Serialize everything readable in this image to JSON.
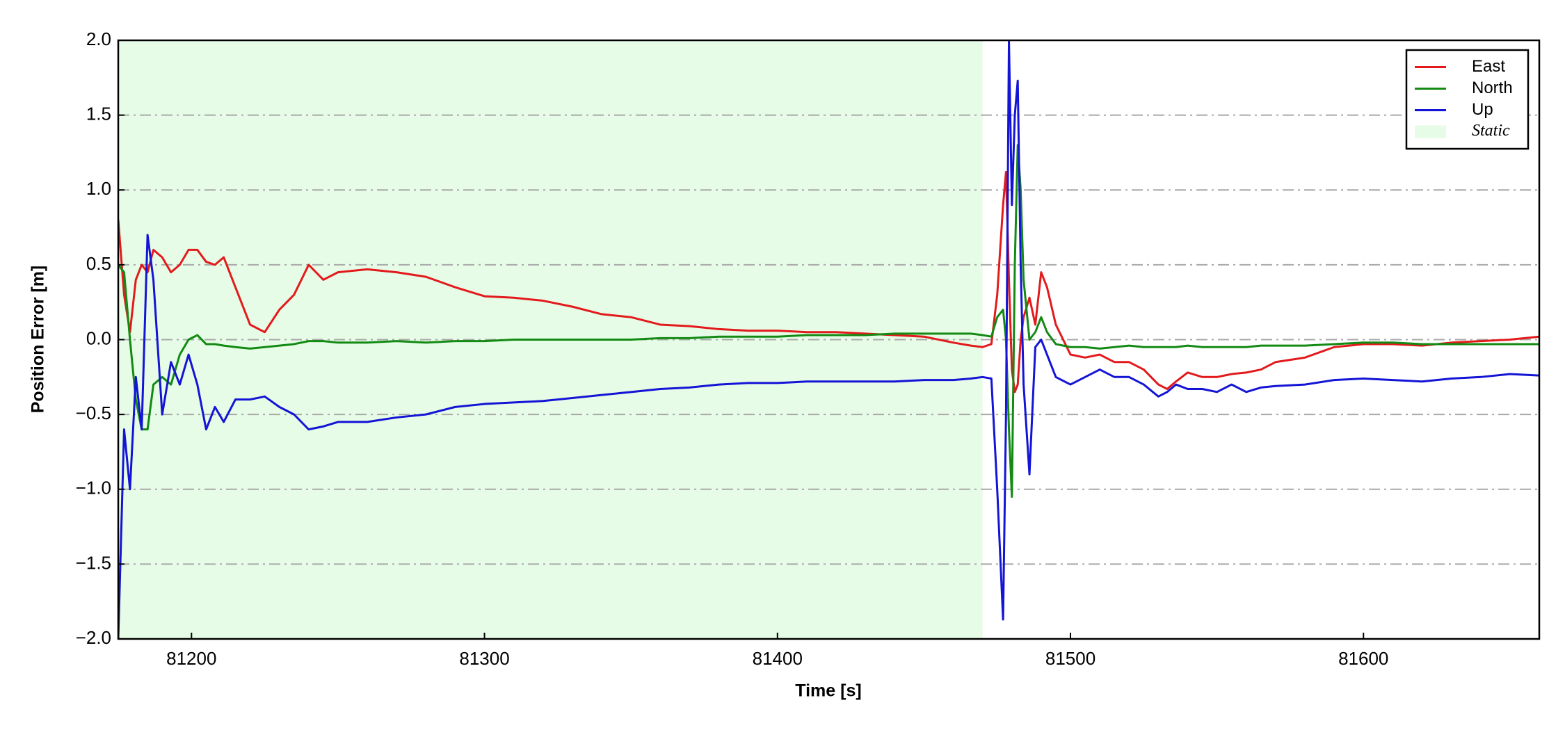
{
  "chart_data": {
    "type": "line",
    "xlabel": "Time [s]",
    "ylabel": "Position Error [m]",
    "xlim": [
      81175,
      81660
    ],
    "ylim": [
      -2.0,
      2.0
    ],
    "xticks": [
      81200,
      81300,
      81400,
      81500,
      81600
    ],
    "yticks": [
      {
        "value": -2.0,
        "label": "−2.0"
      },
      {
        "value": -1.5,
        "label": "−1.5"
      },
      {
        "value": -1.0,
        "label": "−1.0"
      },
      {
        "value": -0.5,
        "label": "−0.5"
      },
      {
        "value": 0.0,
        "label": "0.0"
      },
      0.5,
      {
        "value": 1.0,
        "label": "1.0"
      },
      1.5,
      {
        "value": 2.0,
        "label": "2.0"
      }
    ],
    "grid": true,
    "legend": "upper right",
    "shaded_regions": [
      {
        "name": "Static",
        "color": "#e6fce6",
        "xmin": 81175,
        "xmax": 81470
      }
    ],
    "x": [
      81175,
      81177,
      81179,
      81181,
      81183,
      81185,
      81187,
      81190,
      81193,
      81196,
      81199,
      81202,
      81205,
      81208,
      81211,
      81215,
      81220,
      81225,
      81230,
      81235,
      81240,
      81245,
      81250,
      81260,
      81270,
      81280,
      81290,
      81300,
      81310,
      81320,
      81330,
      81340,
      81350,
      81360,
      81370,
      81380,
      81390,
      81400,
      81410,
      81420,
      81430,
      81440,
      81450,
      81460,
      81466,
      81470,
      81473,
      81475,
      81477,
      81478,
      81479,
      81480,
      81481,
      81482,
      81483,
      81484,
      81486,
      81488,
      81490,
      81492,
      81495,
      81500,
      81505,
      81510,
      81515,
      81520,
      81525,
      81530,
      81533,
      81536,
      81540,
      81545,
      81550,
      81555,
      81560,
      81565,
      81570,
      81580,
      81590,
      81600,
      81610,
      81620,
      81630,
      81640,
      81650,
      81660
    ],
    "series": [
      {
        "name": "East",
        "color": "#e31a1c",
        "values": [
          0.8,
          0.3,
          0.05,
          0.4,
          0.5,
          0.45,
          0.6,
          0.55,
          0.45,
          0.5,
          0.6,
          0.6,
          0.52,
          0.5,
          0.55,
          0.35,
          0.1,
          0.05,
          0.2,
          0.3,
          0.5,
          0.4,
          0.45,
          0.47,
          0.45,
          0.42,
          0.35,
          0.29,
          0.28,
          0.26,
          0.22,
          0.17,
          0.15,
          0.1,
          0.09,
          0.07,
          0.06,
          0.06,
          0.05,
          0.05,
          0.04,
          0.03,
          0.02,
          -0.02,
          -0.04,
          -0.05,
          -0.03,
          0.3,
          0.9,
          1.12,
          0.4,
          -0.2,
          -0.35,
          -0.3,
          0,
          0.15,
          0.28,
          0.1,
          0.45,
          0.35,
          0.1,
          -0.1,
          -0.12,
          -0.1,
          -0.15,
          -0.15,
          -0.2,
          -0.3,
          -0.33,
          -0.28,
          -0.22,
          -0.25,
          -0.25,
          -0.23,
          -0.22,
          -0.2,
          -0.15,
          -0.12,
          -0.05,
          -0.03,
          -0.03,
          -0.04,
          -0.02,
          -0.01,
          0,
          0.02
        ]
      },
      {
        "name": "North",
        "color": "#138a13",
        "values": [
          0.5,
          0.45,
          0,
          -0.4,
          -0.6,
          -0.6,
          -0.3,
          -0.25,
          -0.3,
          -0.1,
          0,
          0.03,
          -0.03,
          -0.03,
          -0.04,
          -0.05,
          -0.06,
          -0.05,
          -0.04,
          -0.03,
          -0.01,
          -0.01,
          -0.02,
          -0.02,
          -0.01,
          -0.02,
          -0.01,
          -0.01,
          0,
          0,
          0,
          0,
          0,
          0.01,
          0.01,
          0.02,
          0.02,
          0.02,
          0.03,
          0.03,
          0.03,
          0.04,
          0.04,
          0.04,
          0.04,
          0.03,
          0.02,
          0.15,
          0.2,
          0,
          -0.6,
          -1.05,
          0.5,
          1.3,
          1.0,
          0.4,
          0,
          0.05,
          0.15,
          0.05,
          -0.03,
          -0.05,
          -0.05,
          -0.06,
          -0.05,
          -0.04,
          -0.05,
          -0.05,
          -0.05,
          -0.05,
          -0.04,
          -0.05,
          -0.05,
          -0.05,
          -0.05,
          -0.04,
          -0.04,
          -0.04,
          -0.03,
          -0.02,
          -0.02,
          -0.03,
          -0.03,
          -0.03,
          -0.03,
          -0.03
        ]
      },
      {
        "name": "Up",
        "color": "#1414d6",
        "values": [
          -2.0,
          -0.6,
          -1.0,
          -0.25,
          -0.6,
          0.7,
          0.4,
          -0.5,
          -0.15,
          -0.3,
          -0.1,
          -0.3,
          -0.6,
          -0.45,
          -0.55,
          -0.4,
          -0.4,
          -0.38,
          -0.45,
          -0.5,
          -0.6,
          -0.58,
          -0.55,
          -0.55,
          -0.52,
          -0.5,
          -0.45,
          -0.43,
          -0.42,
          -0.41,
          -0.39,
          -0.37,
          -0.35,
          -0.33,
          -0.32,
          -0.3,
          -0.29,
          -0.29,
          -0.28,
          -0.28,
          -0.28,
          -0.28,
          -0.27,
          -0.27,
          -0.26,
          -0.25,
          -0.26,
          -1.0,
          -1.87,
          -0.5,
          2.0,
          0.9,
          1.5,
          1.73,
          0.5,
          -0.3,
          -0.9,
          -0.05,
          0,
          -0.1,
          -0.25,
          -0.3,
          -0.25,
          -0.2,
          -0.25,
          -0.25,
          -0.3,
          -0.38,
          -0.35,
          -0.3,
          -0.33,
          -0.33,
          -0.35,
          -0.3,
          -0.35,
          -0.32,
          -0.31,
          -0.3,
          -0.27,
          -0.26,
          -0.27,
          -0.28,
          -0.26,
          -0.25,
          -0.23,
          -0.24
        ]
      }
    ]
  }
}
